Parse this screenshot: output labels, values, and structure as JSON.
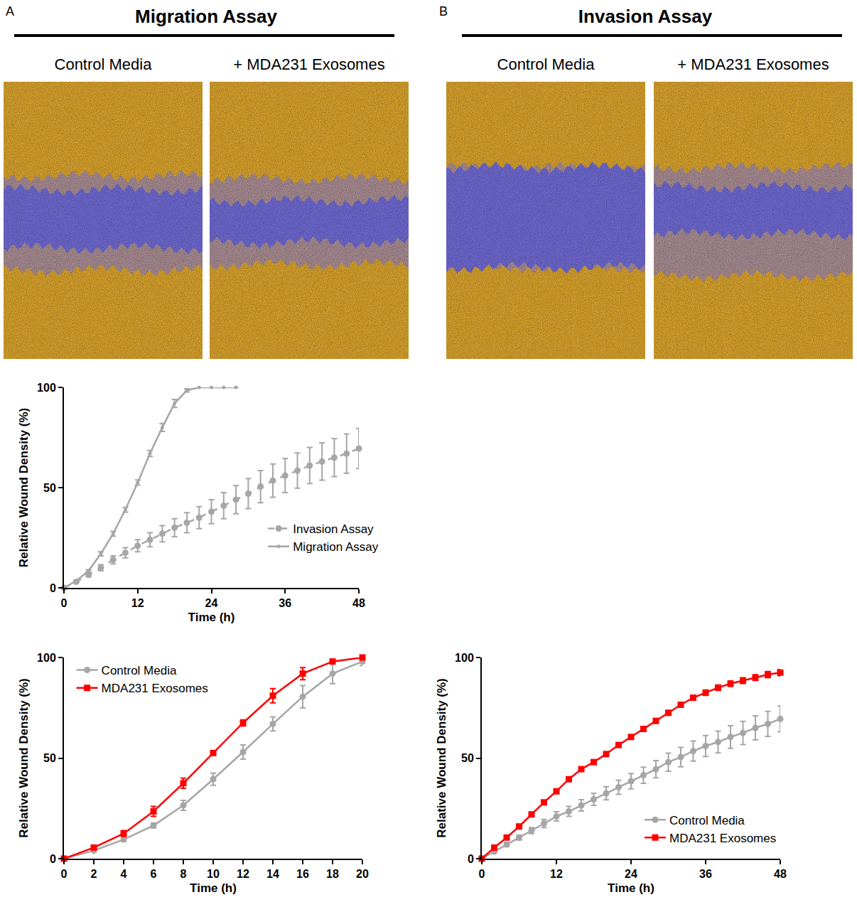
{
  "figure": {
    "panels": [
      {
        "letter": "A",
        "title": "Migration Assay",
        "images": [
          "Control Media",
          "+ MDA231 Exosomes"
        ]
      },
      {
        "letter": "B",
        "title": "Invasion Assay",
        "images": [
          "Control Media",
          "+ MDA231 Exosomes"
        ]
      }
    ]
  },
  "chart_data": [
    {
      "type": "line",
      "x_label": "Time (h)",
      "y_label": "Relative Wound Density (%)",
      "xlim": [
        0,
        48
      ],
      "xticks": [
        0,
        12,
        24,
        36,
        48
      ],
      "ylim": [
        0,
        100
      ],
      "yticks": [
        0,
        50,
        100
      ],
      "legend": "right",
      "series": [
        {
          "name": "Invasion Assay",
          "color": "#a6a6a6",
          "marker": "circle",
          "line_style": "dash",
          "x": [
            0,
            2,
            4,
            6,
            8,
            10,
            12,
            14,
            16,
            18,
            20,
            22,
            24,
            26,
            28,
            30,
            32,
            34,
            36,
            38,
            40,
            42,
            44,
            46,
            48
          ],
          "values": [
            0,
            3,
            6.5,
            10,
            14,
            17.5,
            21,
            24,
            27,
            30,
            32.5,
            35,
            38,
            41,
            44,
            47,
            50.5,
            53.5,
            56,
            58.5,
            61,
            63,
            65,
            67,
            69.5
          ],
          "errors": [
            0,
            0.5,
            1,
            1.5,
            2,
            2.5,
            3,
            3.5,
            4,
            4.5,
            5,
            5.5,
            6,
            6.5,
            7,
            7.5,
            8,
            8.3,
            8.5,
            8.8,
            9,
            9.3,
            9.5,
            9.8,
            10
          ]
        },
        {
          "name": "Migration Assay",
          "color": "#a6a6a6",
          "marker": "dot",
          "line_style": "solid",
          "x": [
            0,
            2,
            4,
            6,
            8,
            10,
            12,
            14,
            16,
            18,
            20,
            22,
            24,
            26,
            28
          ],
          "values": [
            0,
            3.5,
            8.5,
            17,
            27,
            39,
            52.5,
            67,
            80,
            92,
            98.5,
            100,
            100,
            100,
            100
          ],
          "errors": [
            0,
            0.3,
            0.5,
            1,
            1.2,
            1.2,
            1.3,
            1.5,
            2,
            2,
            0.8,
            0,
            0,
            0,
            0
          ]
        }
      ]
    },
    {
      "type": "line",
      "x_label": "Time (h)",
      "y_label": "Relative Wound Density (%)",
      "xlim": [
        0,
        20
      ],
      "xticks": [
        0,
        2,
        4,
        6,
        8,
        10,
        12,
        14,
        16,
        18,
        20
      ],
      "ylim": [
        0,
        100
      ],
      "yticks": [
        0,
        50,
        100
      ],
      "legend": "upper left",
      "series": [
        {
          "name": "Control Media",
          "color": "#a6a6a6",
          "marker": "circle",
          "line_style": "solid",
          "x": [
            0,
            2,
            4,
            6,
            8,
            10,
            12,
            14,
            16,
            18,
            20
          ],
          "values": [
            0,
            4,
            9.5,
            16.5,
            26.5,
            39.5,
            53,
            67,
            80.5,
            92,
            98
          ],
          "errors": [
            0,
            0.5,
            0.8,
            1.2,
            2.5,
            3,
            3.5,
            3.5,
            5.5,
            5,
            2
          ]
        },
        {
          "name": "MDA231 Exosomes",
          "color": "#ff0000",
          "marker": "square",
          "line_style": "solid",
          "x": [
            0,
            2,
            4,
            6,
            8,
            10,
            12,
            14,
            16,
            18,
            20
          ],
          "values": [
            0,
            5.5,
            12.5,
            23.5,
            37.5,
            52.5,
            67.5,
            81,
            92,
            98,
            100
          ],
          "errors": [
            0,
            0.5,
            1.5,
            2.5,
            2.5,
            1,
            1.5,
            3.5,
            3,
            1,
            0.5
          ]
        }
      ]
    },
    {
      "type": "line",
      "x_label": "Time (h)",
      "y_label": "Relative Wound Density (%)",
      "xlim": [
        0,
        48
      ],
      "xticks": [
        0,
        12,
        24,
        36,
        48
      ],
      "ylim": [
        0,
        100
      ],
      "yticks": [
        0,
        50,
        100
      ],
      "legend": "lower right",
      "series": [
        {
          "name": "Control Media",
          "color": "#a6a6a6",
          "marker": "circle",
          "line_style": "solid",
          "x": [
            0,
            2,
            4,
            6,
            8,
            10,
            12,
            14,
            16,
            18,
            20,
            22,
            24,
            26,
            28,
            30,
            32,
            34,
            36,
            38,
            40,
            42,
            44,
            46,
            48
          ],
          "values": [
            0,
            3.5,
            7,
            10.5,
            14,
            17.5,
            21,
            23.5,
            26.5,
            29.5,
            32.5,
            35.5,
            38.5,
            41.5,
            44.5,
            48,
            50.5,
            53.5,
            56,
            58,
            60.5,
            62.5,
            65,
            67,
            69.5
          ],
          "errors": [
            0,
            0.5,
            1,
            1.2,
            1.5,
            2,
            2.3,
            2.5,
            2.8,
            3,
            3.3,
            3.5,
            3.8,
            4,
            4.3,
            4.5,
            4.8,
            5,
            5.2,
            5.4,
            5.6,
            5.8,
            6,
            6.2,
            6.4
          ]
        },
        {
          "name": "MDA231 Exosomes",
          "color": "#ff0000",
          "marker": "square",
          "line_style": "solid",
          "x": [
            0,
            2,
            4,
            6,
            8,
            10,
            12,
            14,
            16,
            18,
            20,
            22,
            24,
            26,
            28,
            30,
            32,
            34,
            36,
            38,
            40,
            42,
            44,
            46,
            48
          ],
          "values": [
            0,
            5.5,
            10.5,
            16,
            22,
            28,
            33.5,
            39.5,
            44.5,
            48,
            52,
            56.5,
            60.5,
            64.5,
            68.5,
            72.5,
            76.5,
            80,
            82.5,
            85,
            87,
            88.5,
            90,
            91.5,
            92.5
          ],
          "errors": [
            0,
            0.3,
            0.4,
            0.5,
            0.5,
            0.6,
            0.7,
            0.7,
            0.8,
            0.8,
            0.9,
            0.9,
            1,
            1,
            1.1,
            1.1,
            1.2,
            1.2,
            1.3,
            1.3,
            1.3,
            1.4,
            1.4,
            1.5,
            1.5
          ]
        }
      ]
    }
  ]
}
